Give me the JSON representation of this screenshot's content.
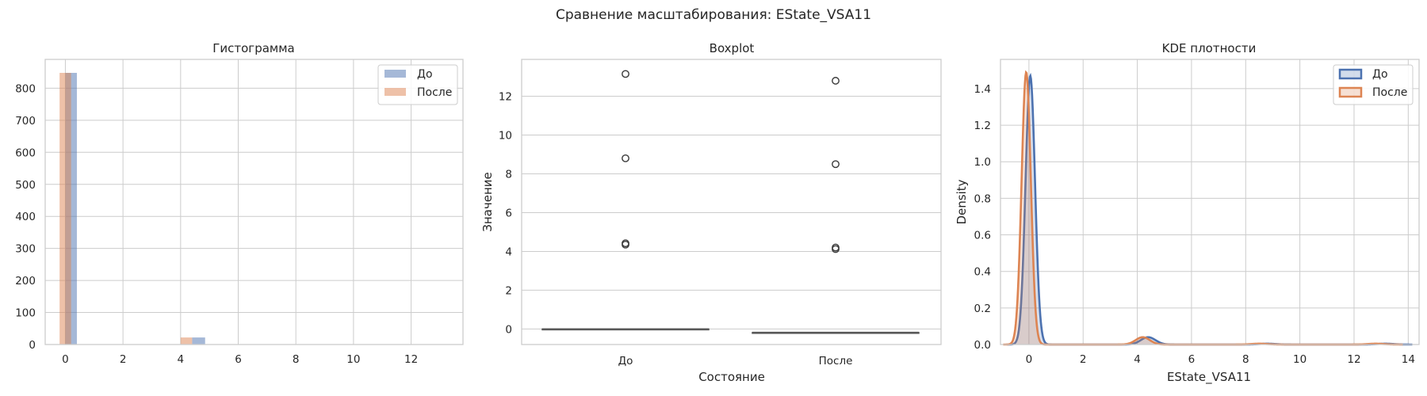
{
  "suptitle": "Сравнение масштабирования: EState_VSA11",
  "colors": {
    "before": "#4c72b0",
    "after": "#dd8452",
    "grid": "#cccccc",
    "box": "#595959"
  },
  "chart_data": [
    {
      "type": "bar",
      "title": "Гистограмма",
      "xlabel": "",
      "ylabel": "",
      "xlim": [
        -0.7,
        13.8
      ],
      "ylim": [
        0,
        890
      ],
      "xticks": [
        0,
        2,
        4,
        6,
        8,
        10,
        12
      ],
      "yticks": [
        0,
        100,
        200,
        300,
        400,
        500,
        600,
        700,
        800
      ],
      "legend": {
        "position": "top-right",
        "entries": [
          "До",
          "После"
        ]
      },
      "grid": true,
      "series": [
        {
          "name": "До",
          "bins": [
            [
              0.0,
              0.4,
              848
            ],
            [
              4.4,
              4.85,
              22
            ],
            [
              8.8,
              9.25,
              0
            ],
            [
              13.1,
              13.55,
              0
            ]
          ]
        },
        {
          "name": "После",
          "bins": [
            [
              -0.2,
              0.2,
              848
            ],
            [
              4.0,
              4.4,
              22
            ],
            [
              8.4,
              8.8,
              0
            ],
            [
              12.7,
              13.1,
              0
            ]
          ]
        }
      ]
    },
    {
      "type": "box",
      "title": "Boxplot",
      "xlabel": "Состояние",
      "ylabel": "Значение",
      "ylim": [
        -0.8,
        13.9
      ],
      "yticks": [
        0,
        2,
        4,
        6,
        8,
        10,
        12
      ],
      "categories": [
        "До",
        "После"
      ],
      "grid": true,
      "boxes": [
        {
          "category": "До",
          "q1": 0,
          "median": 0,
          "q3": 0,
          "whisker_low": 0,
          "whisker_high": 0,
          "outliers": [
            4.35,
            4.42,
            8.8,
            13.15
          ]
        },
        {
          "category": "После",
          "q1": -0.18,
          "median": -0.18,
          "q3": -0.18,
          "whisker_low": -0.18,
          "whisker_high": -0.18,
          "outliers": [
            4.12,
            4.2,
            8.5,
            12.8
          ]
        }
      ]
    },
    {
      "type": "area",
      "title": "KDE плотности",
      "xlabel": "EState_VSA11",
      "ylabel": "Density",
      "xlim": [
        -1.05,
        14.4
      ],
      "ylim": [
        0,
        1.56
      ],
      "xticks": [
        0,
        2,
        4,
        6,
        8,
        10,
        12,
        14
      ],
      "yticks": [
        0.0,
        0.2,
        0.4,
        0.6,
        0.8,
        1.0,
        1.2,
        1.4
      ],
      "legend": {
        "position": "top-right",
        "entries": [
          "До",
          "После"
        ]
      },
      "grid": true,
      "series": [
        {
          "name": "До",
          "peaks": [
            [
              0.05,
              1.47,
              0.175
            ],
            [
              4.4,
              0.04,
              0.27
            ],
            [
              8.8,
              0.0045,
              0.3
            ],
            [
              13.15,
              0.0045,
              0.3
            ]
          ]
        },
        {
          "name": "После",
          "peaks": [
            [
              -0.1,
              1.49,
              0.17
            ],
            [
              4.2,
              0.04,
              0.26
            ],
            [
              8.5,
              0.0045,
              0.3
            ],
            [
              12.8,
              0.0045,
              0.3
            ]
          ]
        }
      ]
    }
  ]
}
